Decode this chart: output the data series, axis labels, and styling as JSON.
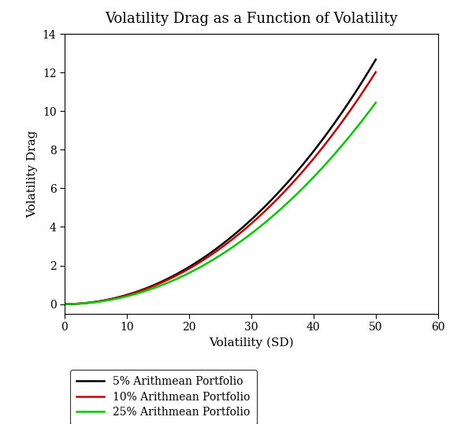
{
  "title": "Volatility Drag as a Function of Volatility",
  "xlabel": "Volatility (SD)",
  "ylabel": "Volatility Drag",
  "xlim": [
    0,
    60
  ],
  "ylim": [
    -0.5,
    14
  ],
  "yticks": [
    0,
    2,
    4,
    6,
    8,
    10,
    12,
    14
  ],
  "xticks": [
    0,
    10,
    20,
    30,
    40,
    50,
    60
  ],
  "series": [
    {
      "label": "5% Arithmean Portfolio",
      "color": "#000000",
      "r_arith": 0.05
    },
    {
      "label": "10% Arithmean Portfolio",
      "color": "#cc0000",
      "r_arith": 0.1
    },
    {
      "label": "25% Arithmean Portfolio",
      "color": "#00cc00",
      "r_arith": 0.25
    }
  ],
  "sigma_range": [
    0,
    50
  ],
  "background_color": "#ffffff",
  "title_fontsize": 13,
  "axis_label_fontsize": 11,
  "tick_fontsize": 10,
  "linewidth": 1.8,
  "legend_fontsize": 10
}
